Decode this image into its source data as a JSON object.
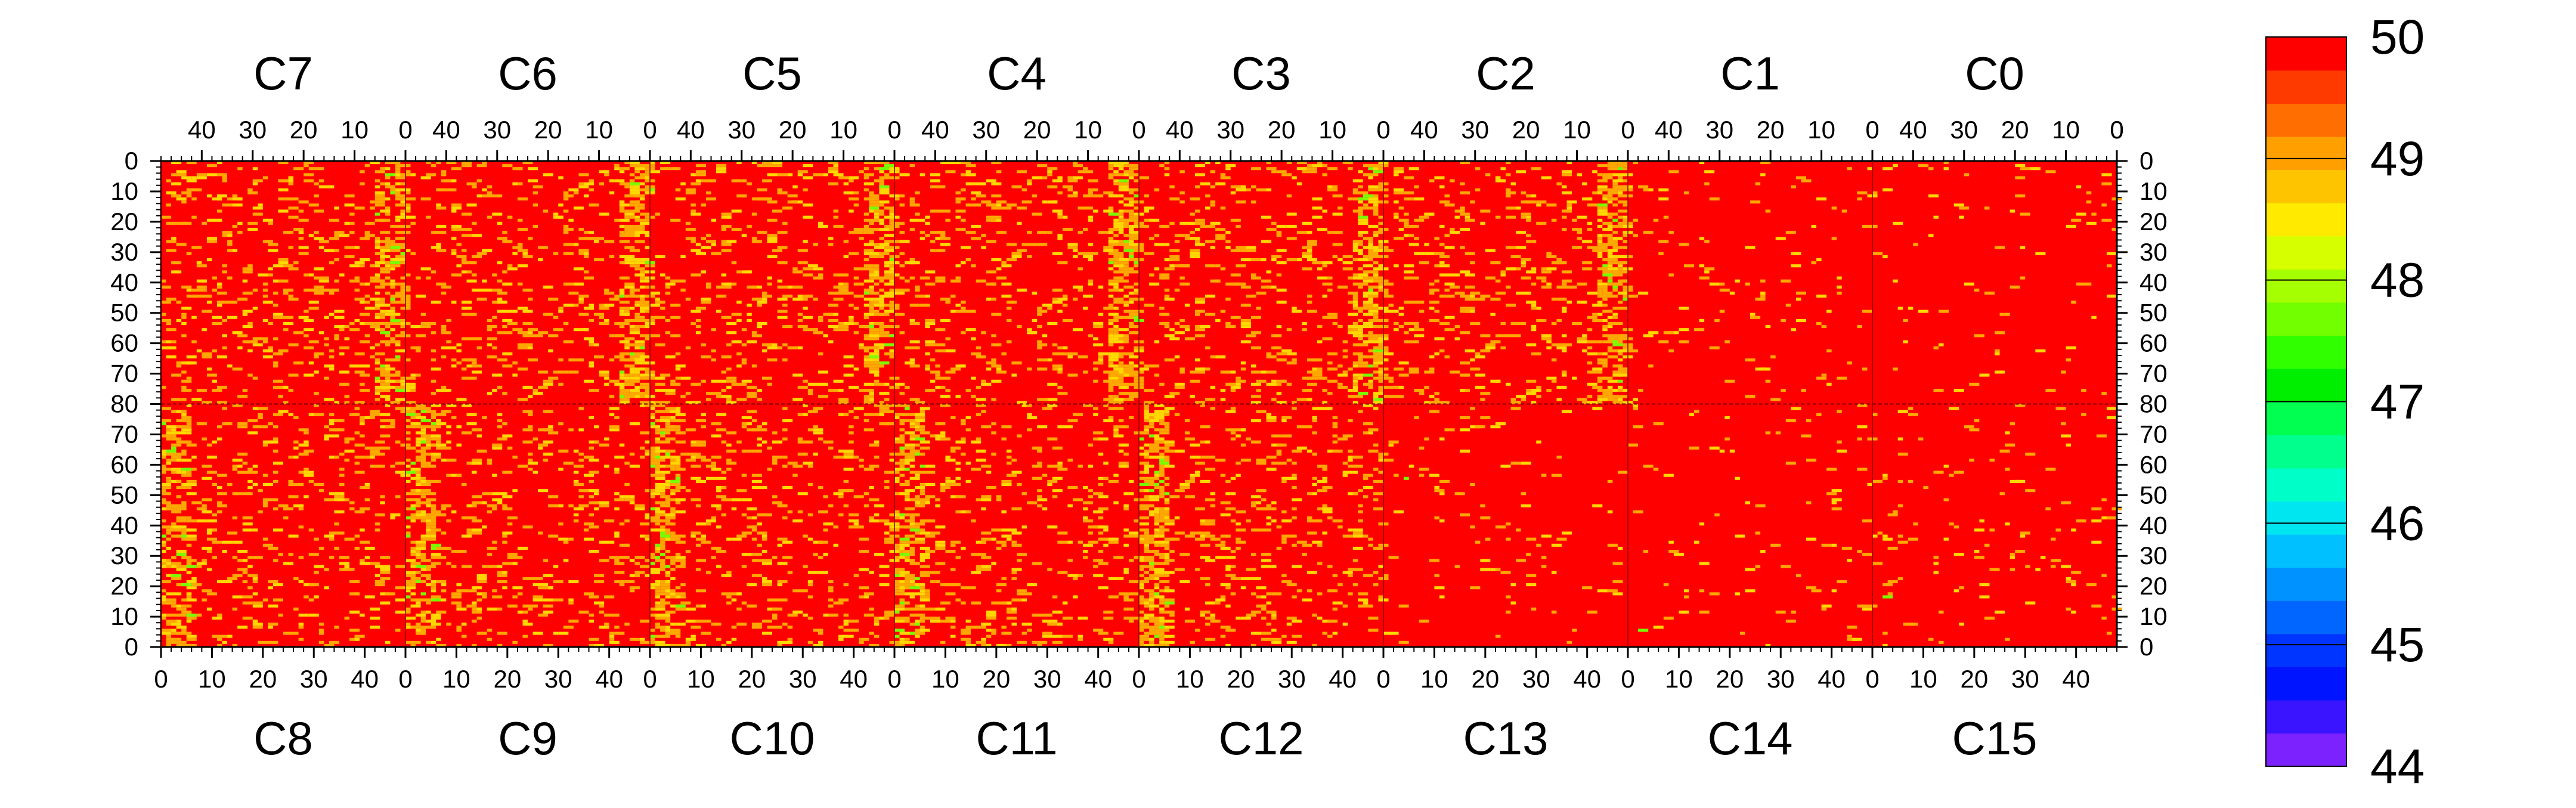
{
  "chart_data": {
    "type": "heatmap",
    "title": "",
    "z_range": [
      44,
      50
    ],
    "colorbar": {
      "tick_labels": [
        "50",
        "49",
        "48",
        "47",
        "46",
        "45",
        "44"
      ],
      "tick_values": [
        50,
        49,
        48,
        47,
        46,
        45,
        44
      ],
      "level_colors": [
        "#7b22ff",
        "#3b14ff",
        "#0014ff",
        "#0034ff",
        "#0066ff",
        "#0092ff",
        "#00c0ff",
        "#00e6f0",
        "#00ffc8",
        "#00ff8c",
        "#00ff50",
        "#00ee00",
        "#30ff00",
        "#72ff00",
        "#a6ff00",
        "#d6ff00",
        "#ffea00",
        "#ffc400",
        "#ffa000",
        "#ff6e00",
        "#ff3a00",
        "#ff0000"
      ]
    },
    "colors": {
      "base": "#ff0000",
      "orange": "#ffa800",
      "yellow": "#ffd800",
      "green": "#78ff00"
    },
    "panels_top": [
      "C7",
      "C6",
      "C5",
      "C4",
      "C3",
      "C2",
      "C1",
      "C0"
    ],
    "panels_bottom": [
      "C8",
      "C9",
      "C10",
      "C11",
      "C12",
      "C13",
      "C14",
      "C15"
    ],
    "x_tick_labels_top": [
      "40",
      "30",
      "20",
      "10",
      "0"
    ],
    "x_tick_labels_bottom": [
      "0",
      "10",
      "20",
      "30",
      "40"
    ],
    "y_tick_labels_top": [
      "0",
      "10",
      "20",
      "30",
      "40",
      "50",
      "60",
      "70",
      "80"
    ],
    "y_tick_labels_bottom": [
      "70",
      "60",
      "50",
      "40",
      "30",
      "20",
      "10",
      "0"
    ],
    "x_range_per_panel": [
      0,
      48
    ],
    "y_range_per_row": [
      0,
      80
    ],
    "pattern": {
      "base_value": 50,
      "hot_stripe_columns": [
        0,
        1,
        2,
        3,
        4,
        5
      ],
      "hot_stripe_value": 49,
      "quiet_panels": [
        "C13",
        "C14",
        "C15",
        "C1",
        "C0"
      ],
      "scatter_value": 49.2
    }
  }
}
